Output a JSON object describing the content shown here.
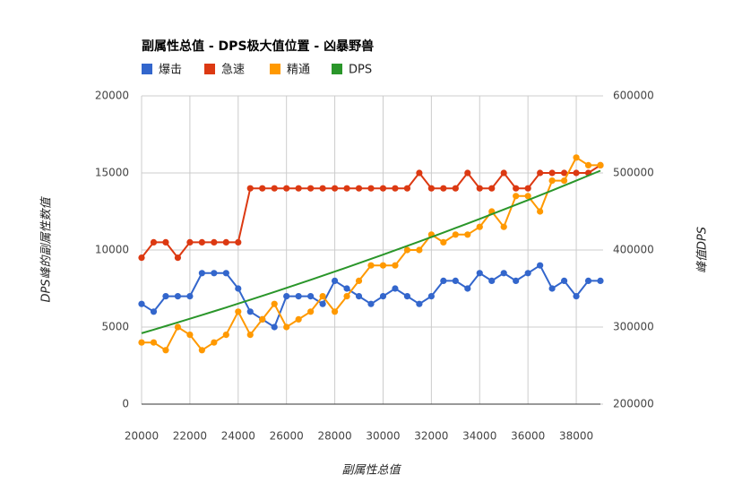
{
  "chart_data": {
    "type": "line",
    "title": "副属性总值 - DPS极大值位置 - 凶暴野兽",
    "x_label": "副属性总值",
    "y_label": "DPS峰的副属性数值",
    "y2_label": "峰值DPS",
    "x": [
      20000,
      20500,
      21000,
      21500,
      22000,
      22500,
      23000,
      23500,
      24000,
      24500,
      25000,
      25500,
      26000,
      26500,
      27000,
      27500,
      28000,
      28500,
      29000,
      29500,
      30000,
      30500,
      31000,
      31500,
      32000,
      32500,
      33000,
      33500,
      34000,
      34500,
      35000,
      35500,
      36000,
      36500,
      37000,
      37500,
      38000,
      38500,
      39000
    ],
    "xlim": [
      20000,
      39000
    ],
    "xticks": [
      20000,
      22000,
      24000,
      26000,
      28000,
      30000,
      32000,
      34000,
      36000,
      38000
    ],
    "ylim": [
      0,
      20000
    ],
    "yticks": [
      0,
      5000,
      10000,
      15000,
      20000
    ],
    "y2lim": [
      200000,
      600000
    ],
    "y2ticks": [
      200000,
      300000,
      400000,
      500000,
      600000
    ],
    "grid": true,
    "legend": "top",
    "series": [
      {
        "name": "爆击",
        "color": "#3366cc",
        "markers": true,
        "values": [
          6500,
          6000,
          7000,
          7000,
          7000,
          8500,
          8500,
          8500,
          7500,
          6000,
          5500,
          5000,
          7000,
          7000,
          7000,
          6500,
          8000,
          7500,
          7000,
          6500,
          7000,
          7500,
          7000,
          6500,
          7000,
          8000,
          8000,
          7500,
          8500,
          8000,
          8500,
          8000,
          8500,
          9000,
          7500,
          8000,
          7000,
          8000,
          8000
        ]
      },
      {
        "name": "急速",
        "color": "#dc3912",
        "markers": true,
        "values": [
          9500,
          10500,
          10500,
          9500,
          10500,
          10500,
          10500,
          10500,
          10500,
          14000,
          14000,
          14000,
          14000,
          14000,
          14000,
          14000,
          14000,
          14000,
          14000,
          14000,
          14000,
          14000,
          14000,
          15000,
          14000,
          14000,
          14000,
          15000,
          14000,
          14000,
          15000,
          14000,
          14000,
          15000,
          15000,
          15000,
          15000,
          15000,
          15500
        ]
      },
      {
        "name": "精通",
        "color": "#ff9900",
        "markers": true,
        "values": [
          4000,
          4000,
          3500,
          5000,
          4500,
          3500,
          4000,
          4500,
          6000,
          4500,
          5500,
          6500,
          5000,
          5500,
          6000,
          7000,
          6000,
          7000,
          8000,
          9000,
          9000,
          9000,
          10000,
          10000,
          11000,
          10500,
          11000,
          11000,
          11500,
          12500,
          11500,
          13500,
          13500,
          12500,
          14500,
          14500,
          16000,
          15500,
          15500
        ]
      },
      {
        "name": "DPS",
        "color": "#2a962a",
        "markers": false,
        "axis": "y2",
        "values": [
          292000,
          296600,
          301300,
          306000,
          310800,
          315600,
          320500,
          325400,
          330400,
          335400,
          340500,
          345600,
          350800,
          356000,
          361300,
          366600,
          372000,
          377400,
          382900,
          388400,
          394000,
          399600,
          405300,
          411000,
          416800,
          422600,
          428500,
          434400,
          440400,
          446400,
          452500,
          458600,
          464800,
          471000,
          477300,
          483600,
          490000,
          496500,
          502900
        ]
      }
    ]
  }
}
